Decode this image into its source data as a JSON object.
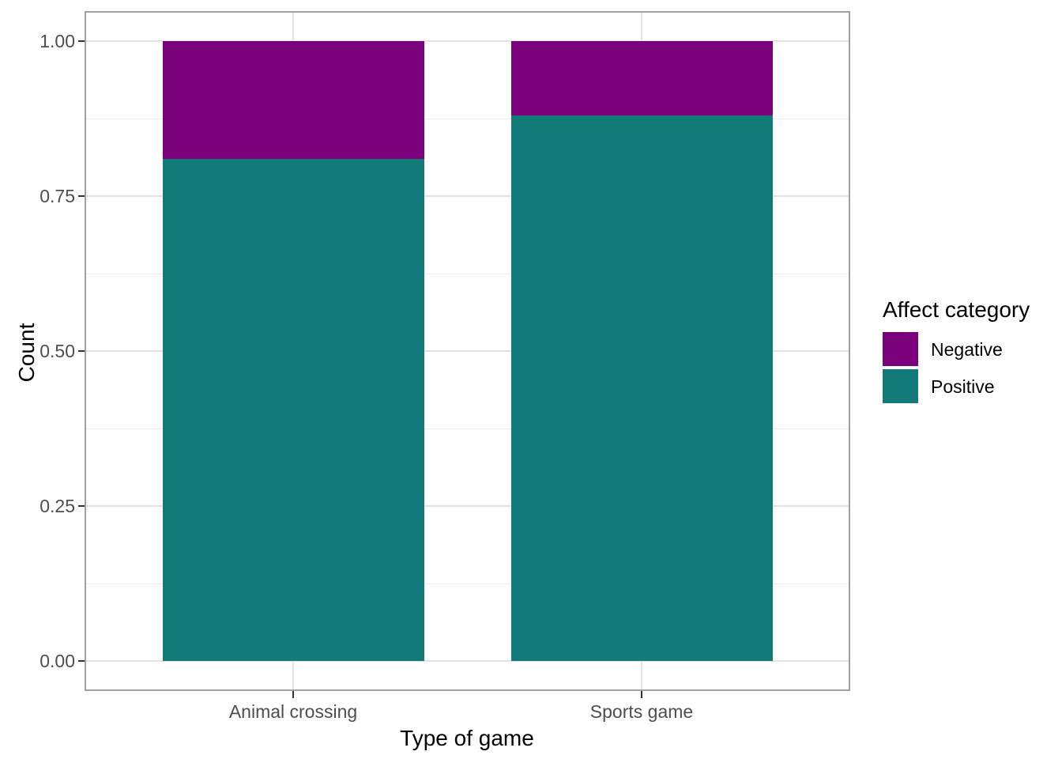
{
  "chart_data": {
    "type": "bar",
    "stacked": true,
    "orientation": "vertical",
    "title": "",
    "xlabel": "Type of game",
    "ylabel": "Count",
    "categories": [
      "Animal crossing",
      "Sports game"
    ],
    "series": [
      {
        "name": "Negative",
        "color": "#7A017B",
        "values": [
          0.19,
          0.12
        ]
      },
      {
        "name": "Positive",
        "color": "#127A78",
        "values": [
          0.81,
          0.88
        ]
      }
    ],
    "ylim": [
      0,
      1
    ],
    "yticks": [
      {
        "value": 0.0,
        "label": "0.00"
      },
      {
        "value": 0.25,
        "label": "0.25"
      },
      {
        "value": 0.5,
        "label": "0.50"
      },
      {
        "value": 0.75,
        "label": "0.75"
      },
      {
        "value": 1.0,
        "label": "1.00"
      }
    ],
    "minor_gridlines": [
      0.125,
      0.375,
      0.625,
      0.875
    ],
    "grid": true,
    "legend": {
      "title": "Affect category",
      "position": "right",
      "entries": [
        "Negative",
        "Positive"
      ]
    },
    "palette": {
      "negative": "#7A017B",
      "positive": "#127A78",
      "grid_major": "#E2E2E2",
      "grid_minor": "#EDEDED",
      "panel_border": "#A0A0A0",
      "tick_mark": "#333333",
      "axis_text": "#4D4D4D",
      "title_text": "#000000",
      "background": "#FFFFFF"
    }
  }
}
